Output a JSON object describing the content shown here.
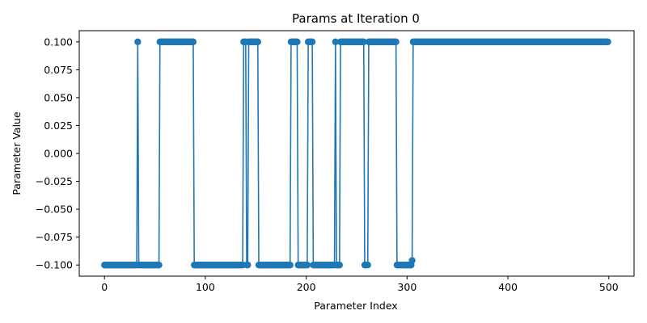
{
  "chart_data": {
    "type": "line",
    "title": "Params at Iteration 0",
    "xlabel": "Parameter Index",
    "ylabel": "Parameter Value",
    "xlim": [
      -25,
      525
    ],
    "ylim": [
      -0.11,
      0.11
    ],
    "xticks": [
      0,
      100,
      200,
      300,
      400,
      500
    ],
    "xtick_labels": [
      "0",
      "100",
      "200",
      "300",
      "400",
      "500"
    ],
    "yticks": [
      -0.1,
      -0.075,
      -0.05,
      -0.025,
      0.0,
      0.025,
      0.05,
      0.075,
      0.1
    ],
    "ytick_labels": [
      "−0.100",
      "−0.075",
      "−0.050",
      "−0.025",
      "0.000",
      "0.025",
      "0.050",
      "0.075",
      "0.100"
    ],
    "grid": false,
    "legend": false,
    "line_color": "#1f77b4",
    "marker": "circle",
    "series": [
      {
        "segments": [
          {
            "start": 0,
            "end": 32,
            "value": -0.1
          },
          {
            "start": 33,
            "end": 33,
            "value": 0.1
          },
          {
            "start": 34,
            "end": 54,
            "value": -0.1
          },
          {
            "start": 55,
            "end": 88,
            "value": 0.1
          },
          {
            "start": 89,
            "end": 137,
            "value": -0.1
          },
          {
            "start": 138,
            "end": 140,
            "value": 0.1
          },
          {
            "start": 141,
            "end": 142,
            "value": -0.1
          },
          {
            "start": 143,
            "end": 152,
            "value": 0.1
          },
          {
            "start": 153,
            "end": 184,
            "value": -0.1
          },
          {
            "start": 185,
            "end": 191,
            "value": 0.1
          },
          {
            "start": 192,
            "end": 201,
            "value": -0.1
          },
          {
            "start": 202,
            "end": 206,
            "value": 0.1
          },
          {
            "start": 207,
            "end": 228,
            "value": -0.1
          },
          {
            "start": 229,
            "end": 229,
            "value": 0.1
          },
          {
            "start": 230,
            "end": 233,
            "value": -0.1
          },
          {
            "start": 234,
            "end": 257,
            "value": 0.1
          },
          {
            "start": 258,
            "end": 261,
            "value": -0.1
          },
          {
            "start": 262,
            "end": 289,
            "value": 0.1
          },
          {
            "start": 290,
            "end": 304,
            "value": -0.1
          },
          {
            "start": 305,
            "end": 305,
            "value": -0.096
          },
          {
            "start": 306,
            "end": 499,
            "value": 0.1
          }
        ]
      }
    ]
  }
}
